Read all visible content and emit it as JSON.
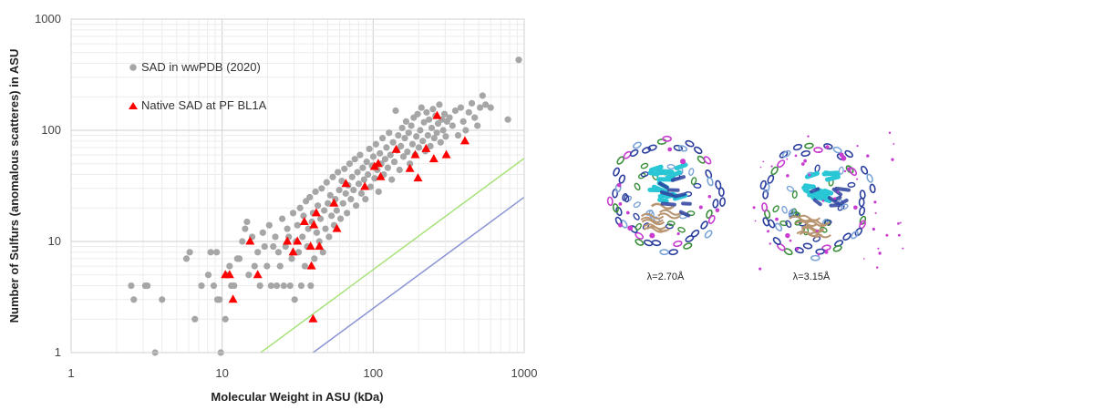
{
  "chart_data": {
    "type": "scatter",
    "xlabel": "Molecular Weight in ASU (kDa)",
    "ylabel": "Number of Sulfurs (anomalous scatteres) in ASU",
    "x_scale": "log",
    "y_scale": "log",
    "xlim": [
      1,
      1000
    ],
    "ylim": [
      1,
      1000
    ],
    "x_ticks": [
      "1",
      "10",
      "100",
      "1000"
    ],
    "y_ticks": [
      "1",
      "10",
      "100",
      "1000"
    ],
    "grid": true,
    "legend_position": "top-left",
    "series": [
      {
        "name": "SAD in wwPDB (2020)",
        "marker": "circle",
        "color": "#a6a6a6",
        "points": [
          [
            2.5,
            4
          ],
          [
            2.6,
            3
          ],
          [
            3.1,
            4
          ],
          [
            3.2,
            4
          ],
          [
            3.6,
            1
          ],
          [
            4.0,
            3
          ],
          [
            5.8,
            7
          ],
          [
            6.1,
            8
          ],
          [
            6.6,
            2
          ],
          [
            7.3,
            4
          ],
          [
            8.1,
            5
          ],
          [
            8.4,
            8
          ],
          [
            8.8,
            4
          ],
          [
            9.2,
            8
          ],
          [
            9.3,
            3
          ],
          [
            9.6,
            3
          ],
          [
            9.8,
            1
          ],
          [
            10.5,
            2
          ],
          [
            10.7,
            5
          ],
          [
            11.2,
            6
          ],
          [
            11.5,
            4
          ],
          [
            12.0,
            4
          ],
          [
            12.6,
            7
          ],
          [
            13.0,
            7
          ],
          [
            13.6,
            10
          ],
          [
            14.2,
            13
          ],
          [
            14.6,
            15
          ],
          [
            15.0,
            5
          ],
          [
            15.8,
            11
          ],
          [
            16.4,
            6
          ],
          [
            17.2,
            8
          ],
          [
            17.8,
            4
          ],
          [
            18.6,
            12
          ],
          [
            19.1,
            9
          ],
          [
            19.8,
            6
          ],
          [
            20.5,
            14
          ],
          [
            21.1,
            4
          ],
          [
            21.8,
            9
          ],
          [
            22.5,
            11
          ],
          [
            23.0,
            4
          ],
          [
            23.6,
            8
          ],
          [
            24.2,
            6
          ],
          [
            25.0,
            16
          ],
          [
            25.6,
            4
          ],
          [
            26.3,
            9
          ],
          [
            27.0,
            13
          ],
          [
            27.6,
            11
          ],
          [
            28.2,
            4
          ],
          [
            28.9,
            7
          ],
          [
            29.5,
            18
          ],
          [
            30.2,
            3
          ],
          [
            30.8,
            10
          ],
          [
            31.5,
            14
          ],
          [
            32.1,
            8
          ],
          [
            32.8,
            20
          ],
          [
            33.4,
            4
          ],
          [
            34.0,
            11
          ],
          [
            34.6,
            17
          ],
          [
            35.3,
            6
          ],
          [
            35.9,
            23
          ],
          [
            36.6,
            9
          ],
          [
            37.2,
            13
          ],
          [
            38.0,
            25
          ],
          [
            38.6,
            4
          ],
          [
            39.3,
            15
          ],
          [
            40.0,
            18
          ],
          [
            40.8,
            7
          ],
          [
            41.5,
            28
          ],
          [
            42.3,
            12
          ],
          [
            43.0,
            21
          ],
          [
            44.0,
            10
          ],
          [
            44.8,
            16
          ],
          [
            45.6,
            30
          ],
          [
            46.5,
            8
          ],
          [
            47.4,
            19
          ],
          [
            48.3,
            13
          ],
          [
            49.2,
            34
          ],
          [
            50.1,
            22
          ],
          [
            51.0,
            11
          ],
          [
            52.0,
            26
          ],
          [
            53.0,
            17
          ],
          [
            54.0,
            38
          ],
          [
            55.1,
            14
          ],
          [
            56.2,
            24
          ],
          [
            57.3,
            19
          ],
          [
            58.4,
            42
          ],
          [
            59.6,
            29
          ],
          [
            60.8,
            16
          ],
          [
            62.0,
            35
          ],
          [
            63.2,
            22
          ],
          [
            64.5,
            45
          ],
          [
            65.8,
            27
          ],
          [
            67.1,
            18
          ],
          [
            68.4,
            32
          ],
          [
            69.8,
            50
          ],
          [
            71.2,
            24
          ],
          [
            72.6,
            38
          ],
          [
            74.1,
            29
          ],
          [
            75.6,
            55
          ],
          [
            77.1,
            21
          ],
          [
            78.7,
            42
          ],
          [
            80.3,
            33
          ],
          [
            81.9,
            60
          ],
          [
            83.6,
            27
          ],
          [
            85.3,
            46
          ],
          [
            87.0,
            36
          ],
          [
            88.8,
            24
          ],
          [
            90.6,
            52
          ],
          [
            92.4,
            40
          ],
          [
            94.3,
            68
          ],
          [
            96.2,
            31
          ],
          [
            98.2,
            48
          ],
          [
            100.2,
            58
          ],
          [
            102.2,
            37
          ],
          [
            104.3,
            75
          ],
          [
            106.4,
            44
          ],
          [
            108.6,
            28
          ],
          [
            110.8,
            62
          ],
          [
            113.0,
            50
          ],
          [
            115.3,
            85
          ],
          [
            117.6,
            40
          ],
          [
            120.0,
            55
          ],
          [
            122.5,
            70
          ],
          [
            125.0,
            46
          ],
          [
            127.5,
            95
          ],
          [
            130.1,
            60
          ],
          [
            132.7,
            36
          ],
          [
            135.4,
            78
          ],
          [
            138.1,
            52
          ],
          [
            140.9,
            150
          ],
          [
            143.7,
            66
          ],
          [
            146.6,
            90
          ],
          [
            149.5,
            44
          ],
          [
            152.5,
            72
          ],
          [
            155.6,
            105
          ],
          [
            158.7,
            58
          ],
          [
            161.9,
            85
          ],
          [
            165.1,
            120
          ],
          [
            168.4,
            64
          ],
          [
            171.7,
            95
          ],
          [
            175.1,
            50
          ],
          [
            178.6,
            110
          ],
          [
            182.1,
            75
          ],
          [
            185.7,
            130
          ],
          [
            189.4,
            60
          ],
          [
            193.1,
            88
          ],
          [
            196.9,
            140
          ],
          [
            200.8,
            70
          ],
          [
            204.8,
            100
          ],
          [
            208.8,
            160
          ],
          [
            212.9,
            80
          ],
          [
            217.1,
            118
          ],
          [
            221.4,
            65
          ],
          [
            225.7,
            145
          ],
          [
            230.2,
            90
          ],
          [
            234.7,
            125
          ],
          [
            239.3,
            72
          ],
          [
            244.0,
            105
          ],
          [
            248.8,
            155
          ],
          [
            253.7,
            85
          ],
          [
            258.7,
            135
          ],
          [
            263.8,
            95
          ],
          [
            269.0,
            115
          ],
          [
            274.3,
            170
          ],
          [
            279.7,
            78
          ],
          [
            285.2,
            125
          ],
          [
            290.8,
            100
          ],
          [
            296.5,
            140
          ],
          [
            302.3,
            88
          ],
          [
            308.2,
            120
          ],
          [
            320.0,
            130
          ],
          [
            335.0,
            110
          ],
          [
            350.0,
            150
          ],
          [
            365.0,
            90
          ],
          [
            380.0,
            160
          ],
          [
            395.0,
            120
          ],
          [
            410.0,
            100
          ],
          [
            430.0,
            145
          ],
          [
            450.0,
            175
          ],
          [
            470.0,
            130
          ],
          [
            490.0,
            110
          ],
          [
            510.0,
            160
          ],
          [
            530.0,
            205
          ],
          [
            555.0,
            170
          ],
          [
            600.0,
            160
          ],
          [
            780.0,
            125
          ],
          [
            920.0,
            430
          ]
        ]
      },
      {
        "name": "Native SAD at PF BL1A",
        "marker": "triangle",
        "color": "#ff0000",
        "points": [
          [
            10.5,
            5
          ],
          [
            11.2,
            5
          ],
          [
            11.8,
            3
          ],
          [
            15.3,
            10
          ],
          [
            17.2,
            5
          ],
          [
            27.0,
            10
          ],
          [
            29.5,
            8
          ],
          [
            31.5,
            10
          ],
          [
            35.0,
            15
          ],
          [
            38.5,
            9
          ],
          [
            39.0,
            6
          ],
          [
            40.0,
            2
          ],
          [
            40.5,
            14
          ],
          [
            42.0,
            18
          ],
          [
            44.0,
            9
          ],
          [
            55.0,
            22
          ],
          [
            57.5,
            13
          ],
          [
            66.0,
            33
          ],
          [
            88.0,
            31
          ],
          [
            102.0,
            47
          ],
          [
            108.0,
            50
          ],
          [
            112.0,
            38
          ],
          [
            142.0,
            67
          ],
          [
            175.0,
            45
          ],
          [
            190.0,
            60
          ],
          [
            198.0,
            37
          ],
          [
            224.0,
            68
          ],
          [
            252.0,
            55
          ],
          [
            265.0,
            135
          ],
          [
            305.0,
            60
          ],
          [
            405.0,
            80
          ]
        ]
      }
    ],
    "reference_lines": [
      {
        "color": "#a8e27a",
        "points": [
          [
            18,
            1
          ],
          [
            1000,
            56
          ]
        ]
      },
      {
        "color": "#8a94d4",
        "points": [
          [
            40,
            1
          ],
          [
            1000,
            25
          ]
        ]
      }
    ]
  },
  "figures": {
    "panel_left": {
      "caption": "λ=2.70Å"
    },
    "panel_right": {
      "caption": "λ=3.15Å"
    },
    "colors": {
      "cyan": "#29c6d6",
      "blue": "#2c3f9e",
      "green": "#3a8f3a",
      "magenta": "#c83cd0",
      "tan": "#b89470",
      "light_blue": "#7aa3d8"
    }
  }
}
